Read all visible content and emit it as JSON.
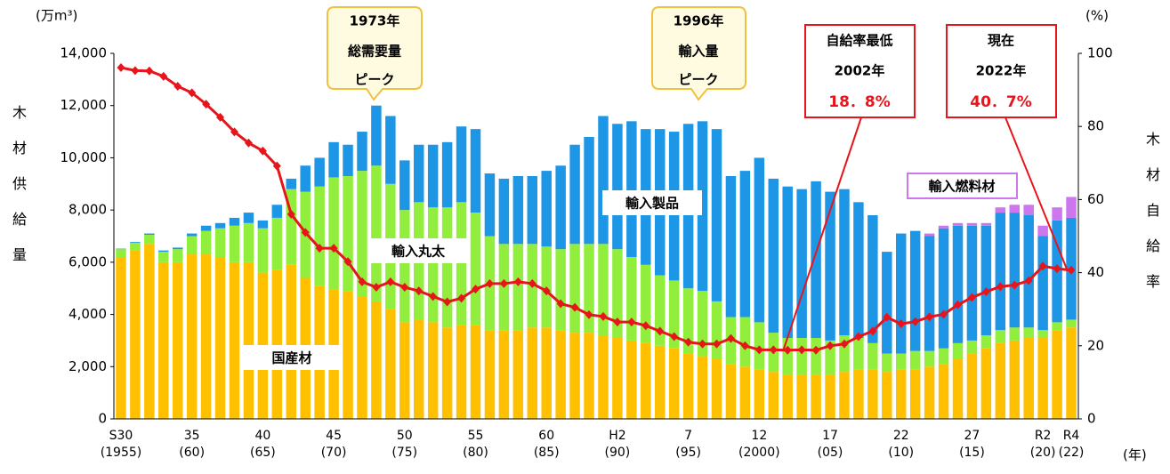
{
  "chart_data": {
    "type": "bar",
    "stacked": true,
    "y_label": "木材供給量",
    "y_unit": "(万m³)",
    "y2_label": "木材自給率",
    "y2_unit": "(%)",
    "x_unit": "(年)",
    "categories": [
      [
        "S30",
        "(1955)"
      ],
      null,
      null,
      null,
      null,
      [
        "35",
        "(60)"
      ],
      null,
      null,
      null,
      null,
      [
        "40",
        "(65)"
      ],
      null,
      null,
      null,
      null,
      [
        "45",
        "(70)"
      ],
      null,
      null,
      null,
      null,
      [
        "50",
        "(75)"
      ],
      null,
      null,
      null,
      null,
      [
        "55",
        "(80)"
      ],
      null,
      null,
      null,
      null,
      [
        "60",
        "(85)"
      ],
      null,
      null,
      null,
      null,
      [
        "H2",
        "(90)"
      ],
      null,
      null,
      null,
      null,
      [
        "7",
        "(95)"
      ],
      null,
      null,
      null,
      null,
      [
        "12",
        "(2000)"
      ],
      null,
      null,
      null,
      null,
      [
        "17",
        "(05)"
      ],
      null,
      null,
      null,
      null,
      [
        "22",
        "(10)"
      ],
      null,
      null,
      null,
      null,
      [
        "27",
        "(15)"
      ],
      null,
      null,
      null,
      null,
      [
        "R2",
        "(20)"
      ],
      null,
      [
        "R4",
        "(22)"
      ]
    ],
    "ylim": [
      0,
      14000
    ],
    "yticks": [
      0,
      {
        "value": 2000,
        "label": "2,000"
      },
      {
        "value": 4000,
        "label": "4,000"
      },
      {
        "value": 6000,
        "label": "6,000"
      },
      {
        "value": 8000,
        "label": "8,000"
      },
      {
        "value": 10000,
        "label": "10,000"
      },
      {
        "value": 12000,
        "label": "12,000"
      },
      {
        "value": 14000,
        "label": "14,000"
      }
    ],
    "y2lim": [
      0,
      100
    ],
    "y2ticks": [
      0,
      20,
      40,
      60,
      80,
      100
    ],
    "series": [
      {
        "name": "国産材",
        "color": "#ffc000",
        "values": [
          6200,
          6450,
          6700,
          6000,
          6000,
          6300,
          6300,
          6200,
          6000,
          6000,
          5600,
          5700,
          5900,
          5400,
          5100,
          4950,
          4900,
          4700,
          4500,
          4200,
          3700,
          3800,
          3700,
          3500,
          3600,
          3600,
          3400,
          3400,
          3400,
          3500,
          3500,
          3400,
          3300,
          3300,
          3200,
          3100,
          3000,
          2900,
          2800,
          2700,
          2500,
          2400,
          2300,
          2100,
          2000,
          1900,
          1800,
          1700,
          1700,
          1700,
          1700,
          1800,
          1900,
          1900,
          1800,
          1900,
          1900,
          2000,
          2100,
          2300,
          2500,
          2700,
          2900,
          3000,
          3100,
          3100,
          3400,
          3500
        ]
      },
      {
        "name": "輸入丸太",
        "color": "#92ee3c",
        "values": [
          300,
          300,
          350,
          400,
          500,
          700,
          900,
          1100,
          1400,
          1500,
          1700,
          2000,
          2900,
          3300,
          3800,
          4300,
          4400,
          4800,
          5200,
          4800,
          4300,
          4500,
          4400,
          4600,
          4700,
          4300,
          3600,
          3300,
          3300,
          3200,
          3100,
          3100,
          3400,
          3400,
          3500,
          3400,
          3200,
          3000,
          2700,
          2600,
          2500,
          2500,
          2200,
          1800,
          1900,
          1800,
          1500,
          1400,
          1400,
          1400,
          1300,
          1400,
          1200,
          1000,
          700,
          600,
          700,
          600,
          600,
          600,
          500,
          500,
          500,
          500,
          400,
          300,
          300,
          300
        ]
      },
      {
        "name": "輸入製品",
        "color": "#1e96e6",
        "values": [
          20,
          30,
          50,
          50,
          60,
          100,
          200,
          200,
          300,
          400,
          300,
          500,
          400,
          1000,
          1100,
          1350,
          1200,
          1500,
          2300,
          2600,
          1900,
          2200,
          2400,
          2500,
          2900,
          3200,
          2400,
          2500,
          2600,
          2600,
          2900,
          3200,
          3800,
          4100,
          4900,
          4800,
          5200,
          5200,
          5600,
          5700,
          6300,
          6500,
          6600,
          5400,
          5600,
          6300,
          5900,
          5800,
          5700,
          6000,
          5700,
          5600,
          5200,
          4900,
          3900,
          4600,
          4600,
          4400,
          4600,
          4500,
          4400,
          4200,
          4500,
          4400,
          4300,
          3600,
          3900,
          3900
        ]
      },
      {
        "name": "輸入燃料材",
        "color": "#cc77ee",
        "values": [
          null,
          null,
          null,
          null,
          null,
          null,
          null,
          null,
          null,
          null,
          null,
          null,
          null,
          null,
          null,
          null,
          null,
          null,
          null,
          null,
          null,
          null,
          null,
          null,
          null,
          null,
          null,
          null,
          null,
          null,
          null,
          null,
          null,
          null,
          null,
          null,
          null,
          null,
          null,
          null,
          null,
          null,
          null,
          null,
          null,
          null,
          null,
          null,
          null,
          null,
          null,
          null,
          null,
          null,
          null,
          null,
          null,
          100,
          100,
          100,
          100,
          100,
          200,
          300,
          400,
          400,
          500,
          800
        ]
      },
      {
        "type": "line",
        "axis": "y2",
        "color": "#e8141c",
        "values": [
          96.1,
          95.3,
          95.2,
          93.7,
          91.0,
          89.2,
          86.1,
          82.5,
          78.5,
          75.5,
          73.3,
          69.2,
          56.0,
          51.0,
          46.7,
          46.7,
          43.0,
          37.5,
          36.0,
          37.5,
          36.0,
          35.0,
          33.5,
          32.0,
          33.0,
          35.5,
          37,
          37,
          37.5,
          37,
          35,
          31.5,
          30.5,
          28.5,
          28,
          26.5,
          26.5,
          25.5,
          24,
          22.5,
          21,
          20.5,
          20.5,
          22,
          20,
          18.9,
          18.9,
          18.8,
          18.9,
          18.8,
          20,
          20.5,
          22.5,
          24,
          27.8,
          26,
          26.6,
          27.9,
          28.6,
          31.2,
          33.2,
          34.8,
          36.2,
          36.6,
          37.8,
          41.8,
          41.1,
          40.7
        ]
      }
    ],
    "annotations": [
      {
        "lines": [
          "1973年",
          "総需要量",
          "ピーク"
        ]
      },
      {
        "lines": [
          "1996年",
          "輸入量",
          "ピーク"
        ]
      },
      {
        "lines": [
          "自給率最低",
          "2002年",
          "18．8%"
        ]
      },
      {
        "lines": [
          "現在",
          "2022年",
          "40．7%"
        ]
      }
    ]
  }
}
